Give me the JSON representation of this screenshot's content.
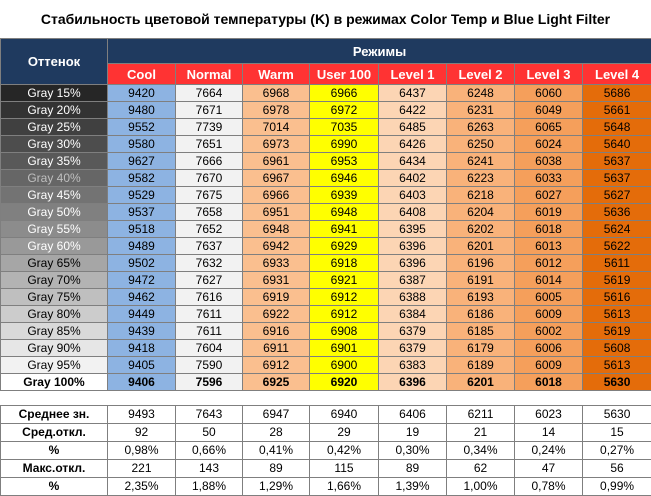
{
  "title": "Стабильность цветовой температуры (K) в режимах Color Temp и Blue Light Filter",
  "header": {
    "shade": "Оттенок",
    "modes": "Режимы",
    "columns": [
      "Cool",
      "Normal",
      "Warm",
      "User 100",
      "Level 1",
      "Level 2",
      "Level 3",
      "Level 4"
    ]
  },
  "colors": {
    "header_bg": "#1f3a5f",
    "col_header_bg": "#ff3333",
    "cool": "#8db3e2",
    "normal": "#f2f2f2",
    "warm": "#fabf8f",
    "user100": "#ffff00",
    "level1": "#fcd5b4",
    "level2": "#f9b27a",
    "level3": "#f59f5b",
    "level4": "#e46c0a"
  },
  "rows": [
    {
      "label": "Gray 15%",
      "bg": "#262626",
      "fg": "#ffffff",
      "values": [
        "9420",
        "7664",
        "6968",
        "6966",
        "6437",
        "6248",
        "6060",
        "5686"
      ]
    },
    {
      "label": "Gray 20%",
      "bg": "#333333",
      "fg": "#ffffff",
      "values": [
        "9480",
        "7671",
        "6978",
        "6972",
        "6422",
        "6231",
        "6049",
        "5661"
      ]
    },
    {
      "label": "Gray 25%",
      "bg": "#404040",
      "fg": "#ffffff",
      "values": [
        "9552",
        "7739",
        "7014",
        "7035",
        "6485",
        "6263",
        "6065",
        "5648"
      ]
    },
    {
      "label": "Gray 30%",
      "bg": "#4d4d4d",
      "fg": "#ffffff",
      "values": [
        "9580",
        "7651",
        "6973",
        "6990",
        "6426",
        "6250",
        "6024",
        "5640"
      ]
    },
    {
      "label": "Gray 35%",
      "bg": "#595959",
      "fg": "#ffffff",
      "values": [
        "9627",
        "7666",
        "6961",
        "6953",
        "6434",
        "6241",
        "6038",
        "5637"
      ]
    },
    {
      "label": "Gray 40%",
      "bg": "#666666",
      "fg": "#bfbfbf",
      "values": [
        "9582",
        "7670",
        "6967",
        "6946",
        "6402",
        "6223",
        "6033",
        "5637"
      ]
    },
    {
      "label": "Gray 45%",
      "bg": "#737373",
      "fg": "#ffffff",
      "values": [
        "9529",
        "7675",
        "6966",
        "6939",
        "6403",
        "6218",
        "6027",
        "5627"
      ]
    },
    {
      "label": "Gray 50%",
      "bg": "#808080",
      "fg": "#ffffff",
      "values": [
        "9537",
        "7658",
        "6951",
        "6948",
        "6408",
        "6204",
        "6019",
        "5636"
      ]
    },
    {
      "label": "Gray 55%",
      "bg": "#8c8c8c",
      "fg": "#ffffff",
      "values": [
        "9518",
        "7652",
        "6948",
        "6941",
        "6395",
        "6202",
        "6018",
        "5624"
      ]
    },
    {
      "label": "Gray 60%",
      "bg": "#999999",
      "fg": "#ffffff",
      "values": [
        "9489",
        "7637",
        "6942",
        "6929",
        "6396",
        "6201",
        "6013",
        "5622"
      ]
    },
    {
      "label": "Gray 65%",
      "bg": "#a6a6a6",
      "fg": "#000000",
      "values": [
        "9502",
        "7632",
        "6933",
        "6918",
        "6396",
        "6196",
        "6012",
        "5611"
      ]
    },
    {
      "label": "Gray 70%",
      "bg": "#b3b3b3",
      "fg": "#000000",
      "values": [
        "9472",
        "7627",
        "6931",
        "6921",
        "6387",
        "6191",
        "6014",
        "5619"
      ]
    },
    {
      "label": "Gray 75%",
      "bg": "#bfbfbf",
      "fg": "#000000",
      "values": [
        "9462",
        "7616",
        "6919",
        "6912",
        "6388",
        "6193",
        "6005",
        "5616"
      ]
    },
    {
      "label": "Gray 80%",
      "bg": "#cccccc",
      "fg": "#000000",
      "values": [
        "9449",
        "7611",
        "6922",
        "6912",
        "6384",
        "6186",
        "6009",
        "5613"
      ]
    },
    {
      "label": "Gray 85%",
      "bg": "#d9d9d9",
      "fg": "#000000",
      "values": [
        "9439",
        "7611",
        "6916",
        "6908",
        "6379",
        "6185",
        "6002",
        "5619"
      ]
    },
    {
      "label": "Gray 90%",
      "bg": "#e6e6e6",
      "fg": "#000000",
      "values": [
        "9418",
        "7604",
        "6911",
        "6901",
        "6379",
        "6179",
        "6006",
        "5608"
      ]
    },
    {
      "label": "Gray 95%",
      "bg": "#f2f2f2",
      "fg": "#000000",
      "values": [
        "9405",
        "7590",
        "6912",
        "6900",
        "6383",
        "6189",
        "6009",
        "5613"
      ]
    },
    {
      "label": "Gray 100%",
      "bg": "#ffffff",
      "fg": "#000000",
      "bold": true,
      "values": [
        "9406",
        "7596",
        "6925",
        "6920",
        "6396",
        "6201",
        "6018",
        "5630"
      ]
    }
  ],
  "stats": [
    {
      "label": "Среднее зн.",
      "values": [
        "9493",
        "7643",
        "6947",
        "6940",
        "6406",
        "6211",
        "6023",
        "5630"
      ]
    },
    {
      "label": "Сред.откл.",
      "values": [
        "92",
        "50",
        "28",
        "29",
        "19",
        "21",
        "14",
        "15"
      ]
    },
    {
      "label": "%",
      "values": [
        "0,98%",
        "0,66%",
        "0,41%",
        "0,42%",
        "0,30%",
        "0,34%",
        "0,24%",
        "0,27%"
      ]
    },
    {
      "label": "Макс.откл.",
      "values": [
        "221",
        "143",
        "89",
        "115",
        "89",
        "62",
        "47",
        "56"
      ]
    },
    {
      "label": "%",
      "values": [
        "2,35%",
        "1,88%",
        "1,29%",
        "1,66%",
        "1,39%",
        "1,00%",
        "0,78%",
        "0,99%"
      ]
    }
  ]
}
